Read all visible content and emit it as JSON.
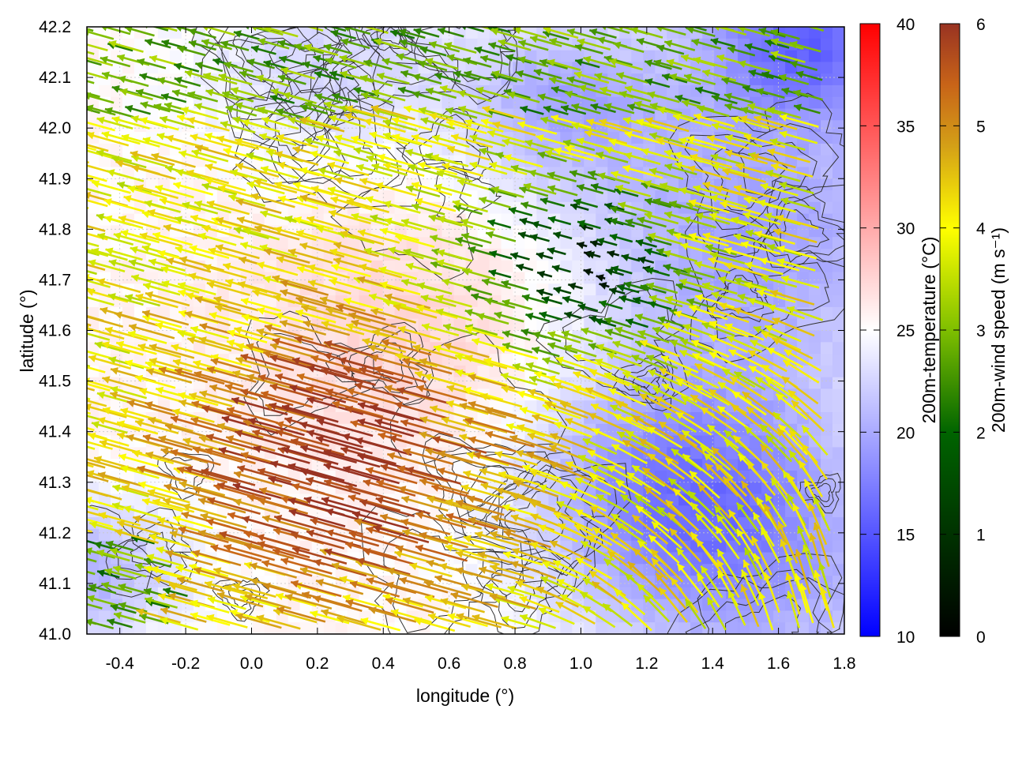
{
  "chart_data": {
    "type": "vector-field",
    "description_fields": {
      "background": "200m-temperature",
      "arrows": "200m-wind speed",
      "contours": "terrain"
    },
    "xlabel": "longitude (°)",
    "ylabel": "latitude (°)",
    "xlim": [
      -0.5,
      1.8
    ],
    "ylim": [
      41.0,
      42.2
    ],
    "x_ticks": [
      -0.4,
      -0.2,
      0.0,
      0.2,
      0.4,
      0.6,
      0.8,
      1.0,
      1.2,
      1.4,
      1.6,
      1.8
    ],
    "x_tick_labels": [
      "-0.4",
      "-0.2",
      "0.0",
      "0.2",
      "0.4",
      "0.6",
      "0.8",
      "1.0",
      "1.2",
      "1.4",
      "1.6",
      "1.8"
    ],
    "y_ticks": [
      41.0,
      41.1,
      41.2,
      41.3,
      41.4,
      41.5,
      41.6,
      41.7,
      41.8,
      41.9,
      42.0,
      42.1,
      42.2
    ],
    "y_tick_labels": [
      "41.0",
      "41.1",
      "41.2",
      "41.3",
      "41.4",
      "41.5",
      "41.6",
      "41.7",
      "41.8",
      "41.9",
      "42.0",
      "42.1",
      "42.2"
    ],
    "grid": true,
    "temperature_colorbar": {
      "label": "200m-temperature (°C)",
      "range": [
        10,
        40
      ],
      "ticks": [
        10,
        15,
        20,
        25,
        30,
        35,
        40
      ],
      "tick_labels": [
        "10",
        "15",
        "20",
        "25",
        "30",
        "35",
        "40"
      ],
      "colors": [
        "#0000ff",
        "#ffffff",
        "#ff0000"
      ]
    },
    "windspeed_colorbar": {
      "label": "200m-wind speed (m s⁻¹)",
      "range": [
        0,
        6
      ],
      "ticks": [
        0,
        1,
        2,
        3,
        4,
        5,
        6
      ],
      "tick_labels": [
        "0",
        "1",
        "2",
        "3",
        "4",
        "5",
        "6"
      ],
      "colors": [
        "#000000",
        "#006400",
        "#7fbf00",
        "#ffff00",
        "#d4a017",
        "#c86418",
        "#993322"
      ]
    }
  }
}
